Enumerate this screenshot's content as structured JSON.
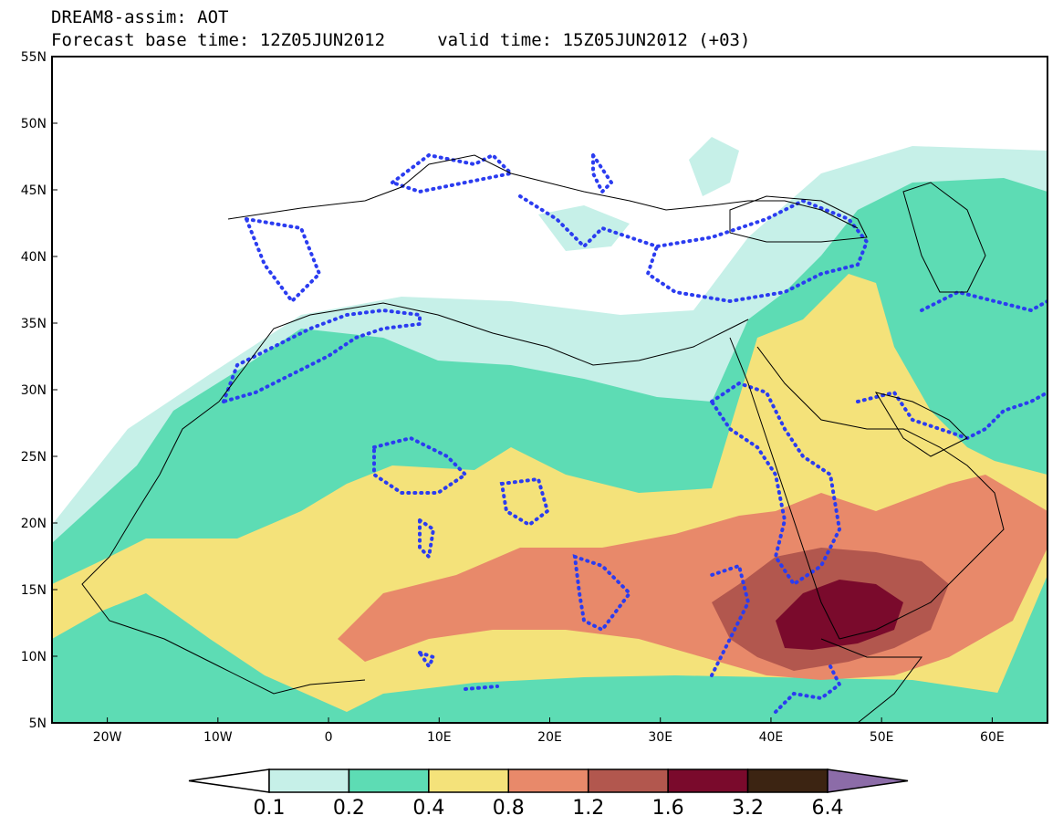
{
  "header": {
    "line1": "DREAM8-assim: AOT",
    "line2": "Forecast base time: 12Z05JUN2012     valid time: 15Z05JUN2012 (+03)"
  },
  "map": {
    "lon_range": [
      -25,
      65
    ],
    "lat_range": [
      5,
      55
    ],
    "lat_ticks": [
      "55N",
      "50N",
      "45N",
      "40N",
      "35N",
      "30N",
      "25N",
      "20N",
      "15N",
      "10N",
      "5N"
    ],
    "lon_ticks": [
      "20W",
      "10W",
      "0",
      "10E",
      "20E",
      "30E",
      "40E",
      "50E",
      "60E"
    ],
    "overlay_style": "blue dotted contours"
  },
  "colorbar": {
    "labels": [
      "0.1",
      "0.2",
      "0.4",
      "0.8",
      "1.2",
      "1.6",
      "3.2",
      "6.4"
    ],
    "colors": [
      "#ffffff",
      "#c6f0e8",
      "#5ddcb4",
      "#f4e27a",
      "#e8896a",
      "#b2574e",
      "#7a0a2c",
      "#3c2412",
      "#8c6ca8"
    ]
  },
  "legend_colors": {
    "class_0_1_0_2": "#c6f0e8",
    "class_0_2_0_4": "#5ddcb4",
    "class_0_4_0_8": "#f4e27a",
    "class_0_8_1_2": "#e8896a",
    "class_1_2_1_6": "#b2574e",
    "class_1_6_3_2": "#7a0a2c",
    "class_3_2_6_4": "#3c2412",
    "over_6_4": "#8c6ca8",
    "overlay_contour": "#2b3cf0"
  }
}
